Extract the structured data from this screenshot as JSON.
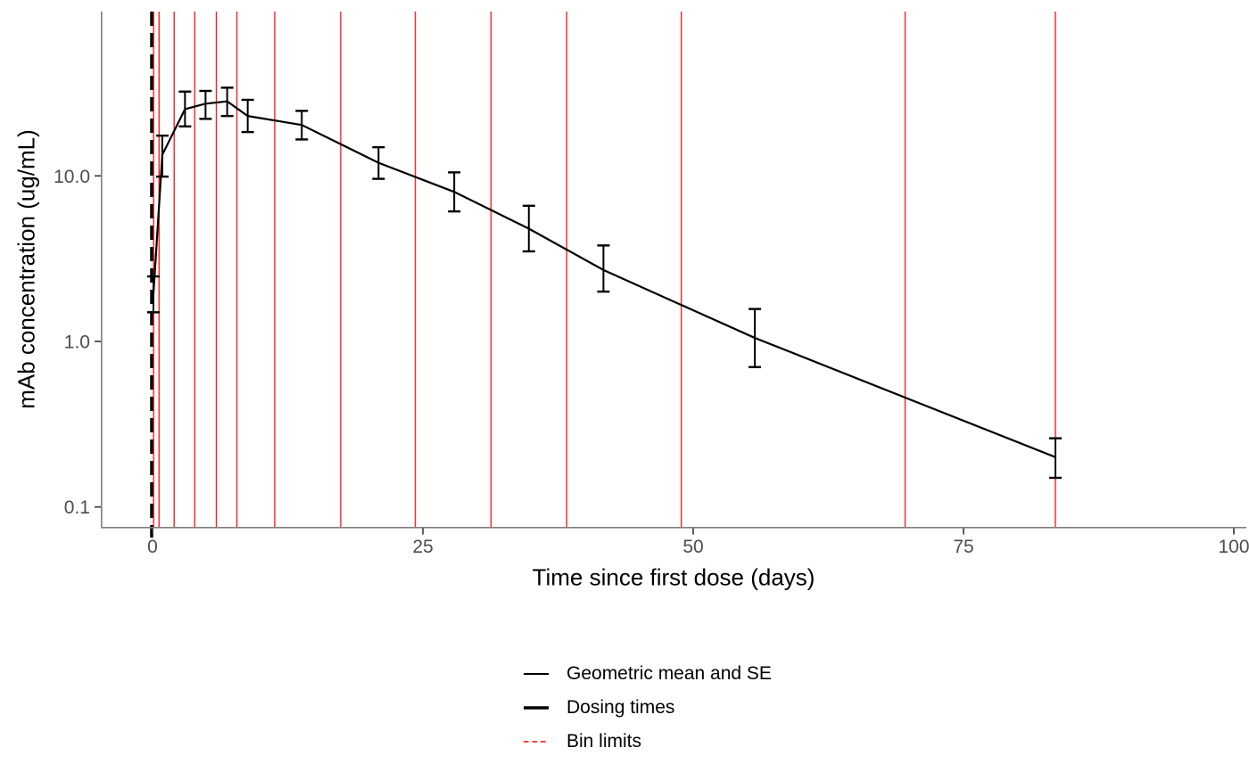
{
  "chart_data": {
    "type": "line",
    "title": "",
    "xlabel": "Time since first dose (days)",
    "ylabel": "mAb concentration (ug/mL)",
    "x_axis": {
      "scale": "linear",
      "tick_values": [
        0,
        25,
        50,
        75,
        100
      ],
      "tick_labels": [
        "0",
        "25",
        "50",
        "75",
        "100"
      ],
      "range_days": [
        -4.8,
        101.2
      ]
    },
    "y_axis": {
      "scale": "log10",
      "tick_values": [
        10.0,
        1.0,
        0.1
      ],
      "tick_labels": [
        "10.0",
        "1.0",
        "0.1"
      ],
      "range": [
        0.076,
        97
      ]
    },
    "grid": "off",
    "series": [
      {
        "name": "Geometric mean and SE",
        "points": [
          {
            "day": 0.08,
            "gm": 1.93,
            "se_lo": 1.5,
            "se_hi": 2.47
          },
          {
            "day": 0.9,
            "gm": 13.4,
            "se_lo": 9.9,
            "se_hi": 17.5
          },
          {
            "day": 3.0,
            "gm": 25.3,
            "se_lo": 19.9,
            "se_hi": 32.3
          },
          {
            "day": 4.9,
            "gm": 27.3,
            "se_lo": 22.1,
            "se_hi": 32.6
          },
          {
            "day": 6.9,
            "gm": 28.2,
            "se_lo": 23.0,
            "se_hi": 34.1
          },
          {
            "day": 8.8,
            "gm": 23.0,
            "se_lo": 18.4,
            "se_hi": 28.8
          },
          {
            "day": 13.8,
            "gm": 20.3,
            "se_lo": 16.6,
            "se_hi": 24.7
          },
          {
            "day": 20.9,
            "gm": 12.0,
            "se_lo": 9.6,
            "se_hi": 14.9
          },
          {
            "day": 27.9,
            "gm": 8.0,
            "se_lo": 6.1,
            "se_hi": 10.5
          },
          {
            "day": 34.8,
            "gm": 4.8,
            "se_lo": 3.5,
            "se_hi": 6.6
          },
          {
            "day": 41.7,
            "gm": 2.7,
            "se_lo": 2.0,
            "se_hi": 3.8
          },
          {
            "day": 55.7,
            "gm": 1.05,
            "se_lo": 0.7,
            "se_hi": 1.57
          },
          {
            "day": 83.5,
            "gm": 0.2,
            "se_lo": 0.15,
            "se_hi": 0.26
          }
        ]
      }
    ],
    "dosing_times_days": [
      0
    ],
    "bin_limits_days": [
      0.1,
      0.6,
      2.0,
      3.9,
      5.9,
      7.8,
      11.3,
      17.4,
      24.3,
      31.3,
      38.3,
      48.9,
      69.6,
      83.5
    ],
    "legend": {
      "position": "bottom",
      "entries": [
        {
          "label": "Geometric mean and SE",
          "key": "thin-black-line"
        },
        {
          "label": "Dosing times",
          "key": "thick-black-line"
        },
        {
          "label": "Bin limits",
          "key": "red-dashed-line"
        }
      ]
    },
    "colors": {
      "series_line": "#000000",
      "error_bar": "#000000",
      "dosing_line": "#000000",
      "bin_limit_line": "#ff0000",
      "axis_line": "#7f7f7f",
      "tick_mark": "#333333",
      "tick_label": "#4d4d4d",
      "axis_title": "#000000",
      "background": "#ffffff"
    }
  }
}
